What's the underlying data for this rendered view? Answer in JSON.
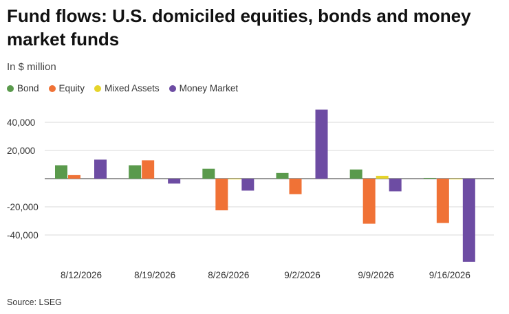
{
  "header": {
    "title": "Fund flows: U.S. domiciled equities, bonds and money market funds",
    "subtitle": "In $ million"
  },
  "footer": {
    "source": "Source: LSEG"
  },
  "chart_data": {
    "type": "bar",
    "title": "Fund flows: U.S. domiciled equities, bonds and money market funds",
    "subtitle": "In $ million",
    "xlabel": "",
    "ylabel": "",
    "categories": [
      "8/12/2026",
      "8/19/2026",
      "8/26/2026",
      "9/2/2026",
      "9/9/2026",
      "9/16/2026"
    ],
    "series": [
      {
        "name": "Bond",
        "color": "#5a9a4c",
        "values": [
          9500,
          9500,
          7000,
          4000,
          6500,
          500
        ]
      },
      {
        "name": "Equity",
        "color": "#f07236",
        "values": [
          2500,
          13000,
          -22500,
          -11000,
          -32000,
          -31500
        ]
      },
      {
        "name": "Mixed Assets",
        "color": "#e6d42a",
        "values": [
          0,
          0,
          -500,
          0,
          2000,
          -500
        ]
      },
      {
        "name": "Money Market",
        "color": "#6d4ca3",
        "values": [
          13500,
          -3500,
          -8500,
          49000,
          -9000,
          -59000
        ]
      }
    ],
    "yticks": [
      40000,
      20000,
      0,
      -20000,
      -40000
    ],
    "ytick_labels": [
      "40,000",
      "20,000",
      "",
      "-20,000",
      "-40,000"
    ],
    "ylim": [
      -60000,
      50000
    ],
    "grid": true,
    "legend_position": "top-left"
  }
}
